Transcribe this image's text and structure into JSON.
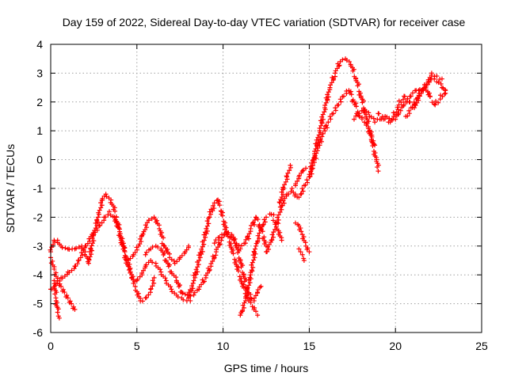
{
  "chart_data": {
    "type": "scatter",
    "title": "Day 159 of 2022, Sidereal Day-to-day VTEC variation (SDTVAR) for receiver case",
    "xlabel": "GPS time / hours",
    "ylabel": "SDTVAR / TECUs",
    "xlim": [
      0,
      25
    ],
    "ylim": [
      -6,
      4
    ],
    "xticks": [
      "0",
      "5",
      "10",
      "15",
      "20",
      "25"
    ],
    "yticks": [
      "-6",
      "-5",
      "-4",
      "-3",
      "-2",
      "-1",
      "0",
      "1",
      "2",
      "3",
      "4"
    ],
    "grid": true,
    "marker": "+",
    "marker_color": "#ff0000",
    "series": [
      {
        "x": [
          0.0,
          0.3,
          0.6,
          1.0,
          1.4,
          1.6,
          2.0,
          2.4,
          2.8,
          3.1,
          3.4,
          3.7,
          4.0,
          4.3,
          4.6,
          4.9,
          5.2,
          5.5,
          5.8,
          6.0
        ],
        "y": [
          -4.5,
          -4.3,
          -4.1,
          -3.9,
          -3.7,
          -3.5,
          -3.0,
          -2.6,
          -2.3,
          -2.0,
          -1.8,
          -2.0,
          -2.5,
          -3.2,
          -3.8,
          -4.4,
          -4.9,
          -4.8,
          -4.5,
          -4.1
        ]
      },
      {
        "x": [
          0.0,
          0.2,
          0.4,
          0.6,
          0.8,
          1.0,
          1.2,
          1.4
        ],
        "y": [
          -3.4,
          -3.8,
          -4.2,
          -4.4,
          -4.6,
          -4.8,
          -5.0,
          -5.2
        ]
      },
      {
        "x": [
          0.2,
          0.3,
          0.4,
          0.5
        ],
        "y": [
          -4.2,
          -4.8,
          -5.3,
          -5.5
        ]
      },
      {
        "x": [
          0.0,
          0.2,
          0.4,
          0.6,
          1.0,
          1.4,
          1.8,
          2.0,
          2.2,
          2.5,
          2.8,
          3.0,
          3.2,
          3.5,
          3.8,
          4.1,
          4.4,
          4.7,
          5.0,
          5.3,
          5.5,
          5.8,
          6.1,
          6.4,
          6.7,
          7.0,
          7.3,
          7.6,
          7.9,
          8.1
        ],
        "y": [
          -3.2,
          -2.8,
          -2.8,
          -3.0,
          -3.1,
          -3.1,
          -3.0,
          -3.2,
          -3.6,
          -2.6,
          -1.9,
          -1.4,
          -1.2,
          -1.4,
          -2.0,
          -2.8,
          -3.5,
          -4.1,
          -4.2,
          -4.0,
          -3.7,
          -3.5,
          -3.6,
          -3.9,
          -4.2,
          -4.5,
          -4.7,
          -4.8,
          -4.9,
          -4.9
        ]
      },
      {
        "x": [
          4.5,
          4.8,
          5.1,
          5.4,
          5.7,
          6.0,
          6.3,
          6.6,
          6.9,
          7.2,
          7.5,
          7.8,
          8.0
        ],
        "y": [
          -3.5,
          -3.3,
          -3.0,
          -2.5,
          -2.1,
          -2.0,
          -2.4,
          -3.0,
          -3.4,
          -3.6,
          -3.4,
          -3.2,
          -3.0
        ]
      },
      {
        "x": [
          5.5,
          5.8,
          6.1,
          6.4,
          6.7,
          7.0,
          7.3,
          7.6,
          8.0,
          8.3,
          8.6,
          9.0,
          9.3,
          9.6,
          9.9,
          10.2,
          10.5,
          10.8,
          11.0,
          11.2,
          11.4,
          11.6,
          11.8,
          12.0,
          12.2
        ],
        "y": [
          -3.3,
          -3.1,
          -3.0,
          -3.1,
          -3.5,
          -3.9,
          -4.2,
          -4.6,
          -4.8,
          -4.7,
          -4.5,
          -4.1,
          -3.7,
          -3.2,
          -2.8,
          -2.5,
          -2.6,
          -3.0,
          -3.5,
          -4.0,
          -4.5,
          -4.8,
          -4.9,
          -4.6,
          -4.4
        ]
      },
      {
        "x": [
          8.0,
          8.3,
          8.6,
          8.9,
          9.2,
          9.5,
          9.7,
          9.9,
          10.2,
          10.5,
          10.8,
          11.1,
          11.4,
          11.7,
          12.0
        ],
        "y": [
          -4.8,
          -4.2,
          -3.5,
          -2.8,
          -2.0,
          -1.5,
          -1.4,
          -1.8,
          -2.5,
          -3.1,
          -3.7,
          -4.3,
          -4.8,
          -5.1,
          -5.4
        ]
      },
      {
        "x": [
          9.5,
          9.8,
          10.1,
          10.4,
          10.7,
          11.0,
          11.3,
          11.6,
          11.9,
          12.2,
          12.5
        ],
        "y": [
          -2.9,
          -2.7,
          -2.6,
          -2.7,
          -2.9,
          -3.1,
          -2.9,
          -2.4,
          -2.0,
          -2.4,
          -3.0
        ]
      },
      {
        "x": [
          11.0,
          11.3,
          11.6,
          11.9,
          12.2,
          12.5,
          12.8,
          13.1,
          13.4
        ],
        "y": [
          -5.4,
          -4.9,
          -4.0,
          -3.0,
          -2.4,
          -2.0,
          -1.9,
          -2.2,
          -2.8
        ]
      },
      {
        "x": [
          12.5,
          12.8,
          13.1,
          13.4,
          13.7,
          14.0,
          14.3,
          14.5,
          14.7,
          15.0,
          15.2
        ],
        "y": [
          -3.2,
          -2.8,
          -2.2,
          -1.6,
          -1.2,
          -1.0,
          -1.3,
          -1.2,
          -0.9,
          -0.6,
          -0.3
        ]
      },
      {
        "x": [
          13.3,
          13.5,
          13.7,
          13.9
        ],
        "y": [
          -1.5,
          -1.0,
          -0.6,
          -0.2
        ]
      },
      {
        "x": [
          14.4,
          14.5,
          14.6,
          14.7
        ],
        "y": [
          -3.1,
          -3.2,
          -3.3,
          -3.5
        ]
      },
      {
        "x": [
          14.2,
          14.4,
          14.6,
          14.8
        ],
        "y": [
          -0.9,
          -0.6,
          -0.4,
          -0.3
        ]
      },
      {
        "x": [
          14.2,
          14.4,
          14.6,
          14.8,
          15.0
        ],
        "y": [
          -2.2,
          -2.3,
          -2.6,
          -3.0,
          -3.2
        ]
      },
      {
        "x": [
          15.0,
          15.3,
          15.6,
          15.9,
          16.2,
          16.5,
          16.8,
          17.1,
          17.4,
          17.7,
          18.0,
          18.3,
          18.6,
          18.9,
          19.0
        ],
        "y": [
          -0.6,
          0.2,
          1.0,
          1.8,
          2.5,
          3.0,
          3.4,
          3.5,
          3.3,
          2.8,
          2.2,
          1.5,
          0.7,
          0.0,
          -0.4
        ]
      },
      {
        "x": [
          15.2,
          15.5,
          15.8,
          16.1,
          16.4,
          16.7,
          17.0,
          17.3,
          17.6,
          17.9,
          18.2,
          18.5,
          18.8
        ],
        "y": [
          -0.2,
          0.4,
          0.9,
          1.3,
          1.6,
          1.9,
          2.2,
          2.4,
          2.0,
          1.5,
          1.3,
          1.0,
          0.5
        ]
      },
      {
        "x": [
          17.6,
          17.9,
          18.2,
          18.5,
          18.8,
          19.1,
          19.4,
          19.7,
          20.0,
          20.3,
          20.6,
          20.9,
          21.2,
          21.5,
          21.8,
          22.1,
          22.4,
          22.7,
          22.9
        ],
        "y": [
          1.4,
          1.6,
          1.7,
          1.5,
          1.3,
          1.4,
          1.5,
          1.3,
          1.4,
          1.7,
          2.0,
          2.2,
          2.4,
          2.3,
          2.6,
          2.8,
          2.7,
          2.5,
          2.3
        ]
      },
      {
        "x": [
          19.0,
          19.3,
          19.6,
          19.9,
          20.2,
          20.5,
          20.8,
          21.1,
          21.4,
          21.7,
          22.0,
          22.3,
          22.6,
          22.9
        ],
        "y": [
          1.6,
          1.4,
          1.3,
          1.5,
          1.9,
          2.2,
          2.0,
          1.8,
          2.3,
          2.6,
          2.2,
          1.9,
          2.1,
          2.4
        ]
      },
      {
        "x": [
          20.6,
          20.9,
          21.2,
          21.5,
          21.8,
          22.1,
          22.4,
          22.7
        ],
        "y": [
          1.5,
          1.8,
          2.1,
          2.4,
          2.6,
          3.0,
          2.9,
          2.8
        ]
      }
    ]
  }
}
